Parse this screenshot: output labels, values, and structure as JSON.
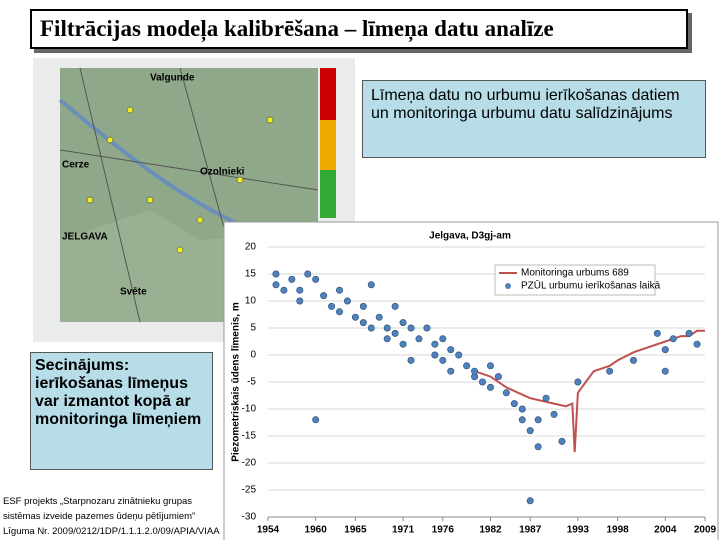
{
  "slide": {
    "title": "Filtrācijas modeļa kalibrēšana – līmeņa datu analīze",
    "callout": "Līmeņa datu no urbumu ierīkošanas datiem un monitoringa urbumu datu salīdzinājums",
    "conclusion": "Secinājums: ierīkošanas līmeņus var izmantot kopā ar monitoringa līmeņiem",
    "footer": [
      "ESF projekts „Starpnozaru zinātnieku grupas",
      "sistēmas izveide pazemes ūdeņu pētījumiem”",
      "Līguma Nr. 2009/0212/1DP/1.1.1.2.0/09/APIA/VIAA"
    ],
    "map_labels": [
      "Valgunde",
      "Ozolnieki",
      "JELGAVA",
      "Svēte",
      "Cerze"
    ]
  },
  "chart_data": {
    "type": "line",
    "title": "Jelgava, D3gj-am",
    "y_label": "Piezometriskais ūdens līmenis, m",
    "xlim": [
      1954,
      2009
    ],
    "xticks": [
      1954,
      1960,
      1965,
      1971,
      1976,
      1982,
      1987,
      1993,
      1998,
      2004,
      2009
    ],
    "ylim": [
      -30,
      20
    ],
    "yticks": [
      -30,
      -25,
      -20,
      -15,
      -10,
      -5,
      0,
      5,
      10,
      15,
      20
    ],
    "grid": true,
    "legend": "upper right",
    "series": [
      {
        "name": "Monitoringa urbums 689",
        "type": "line",
        "color": "#c0504d",
        "x": [
          1980,
          1982,
          1984,
          1985.5,
          1987,
          1988.5,
          1990,
          1991.5,
          1992.3,
          1992.6,
          1993,
          1994,
          1995,
          1997,
          1998,
          2000,
          2001,
          2003,
          2004,
          2005,
          2006,
          2007,
          2008,
          2009
        ],
        "values": [
          -3,
          -4,
          -6,
          -7,
          -8,
          -8.5,
          -9,
          -9.5,
          -9,
          -18,
          -7,
          -5,
          -3,
          -2,
          -1,
          0.5,
          1,
          2,
          2.5,
          3,
          3.5,
          3.5,
          4.5,
          4.5
        ]
      },
      {
        "name": "PZŪL urbumu ierīkošanas laikā",
        "type": "scatter",
        "color": "#4f81bd",
        "x": [
          1955,
          1955,
          1956,
          1957,
          1958,
          1958,
          1959,
          1960,
          1960,
          1961,
          1962,
          1963,
          1963,
          1964,
          1965,
          1966,
          1966,
          1967,
          1967,
          1968,
          1969,
          1969,
          1970,
          1970,
          1971,
          1971,
          1972,
          1972,
          1973,
          1974,
          1975,
          1975,
          1976,
          1976,
          1977,
          1977,
          1978,
          1979,
          1980,
          1980,
          1981,
          1982,
          1982,
          1983,
          1984,
          1985,
          1986,
          1986,
          1987,
          1987,
          1988,
          1988,
          1989,
          1990,
          1991,
          1993,
          1997,
          2000,
          2003,
          2004,
          2004,
          2005,
          2007,
          2008
        ],
        "values": [
          15,
          13,
          12,
          14,
          10,
          12,
          15,
          -12,
          14,
          11,
          9,
          12,
          8,
          10,
          7,
          9,
          6,
          5,
          13,
          7,
          5,
          3,
          9,
          4,
          6,
          2,
          5,
          -1,
          3,
          5,
          2,
          0,
          3,
          -1,
          1,
          -3,
          0,
          -2,
          -4,
          -3,
          -5,
          -6,
          -2,
          -4,
          -7,
          -9,
          -10,
          -12,
          -14,
          -27,
          -12,
          -17,
          -8,
          -11,
          -16,
          -5,
          -3,
          -1,
          4,
          1,
          -3,
          3,
          4,
          2
        ]
      }
    ]
  }
}
